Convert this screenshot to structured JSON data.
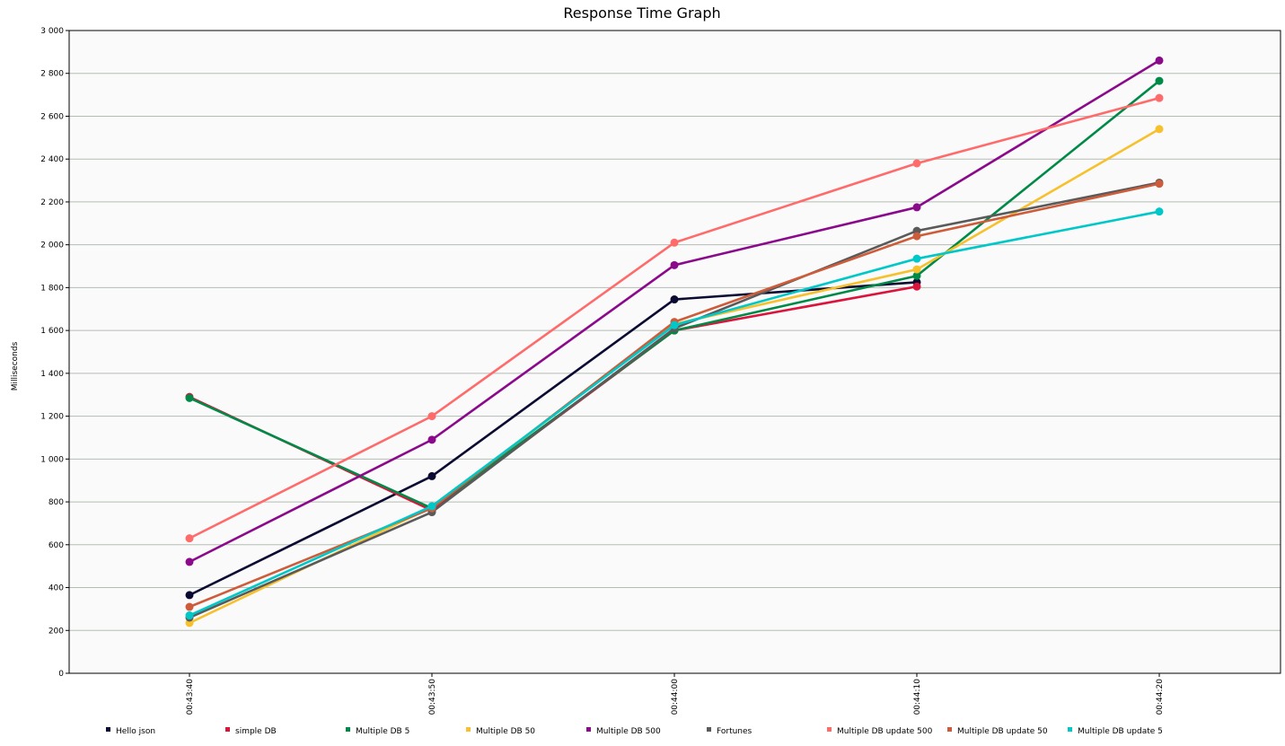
{
  "chart_data": {
    "type": "line",
    "title": "Response Time Graph",
    "xlabel": "",
    "ylabel": "Milliseconds",
    "x": [
      "00:43:40",
      "00:43:50",
      "00:44:00",
      "00:44:10",
      "00:44:20"
    ],
    "ylim": [
      0,
      3000
    ],
    "yticks": [
      0,
      200,
      400,
      600,
      800,
      1000,
      1200,
      1400,
      1600,
      1800,
      2000,
      2200,
      2400,
      2600,
      2800,
      3000
    ],
    "ytick_labels": [
      "0",
      "200",
      "400",
      "600",
      "800",
      "1 000",
      "1 200",
      "1 400",
      "1 600",
      "1 800",
      "2 000",
      "2 200",
      "2 400",
      "2 600",
      "2 800",
      "3 000"
    ],
    "grid": true,
    "legend_position": "bottom",
    "series": [
      {
        "name": "Hello json",
        "color": "#0a0a32",
        "values": [
          365,
          920,
          1745,
          1825,
          null
        ]
      },
      {
        "name": "simple DB",
        "color": "#dc143c",
        "values": [
          1290,
          760,
          1600,
          1805,
          null
        ]
      },
      {
        "name": "Multiple DB 5",
        "color": "#008a47",
        "values": [
          1285,
          770,
          1600,
          1855,
          2765
        ]
      },
      {
        "name": "Multiple DB 50",
        "color": "#f7c12d",
        "values": [
          235,
          775,
          1630,
          1885,
          2540
        ]
      },
      {
        "name": "Multiple DB 500",
        "color": "#8b0a8b",
        "values": [
          520,
          1090,
          1905,
          2175,
          2860
        ]
      },
      {
        "name": "Fortunes",
        "color": "#5a5a5a",
        "values": [
          260,
          752,
          1610,
          2065,
          2290
        ]
      },
      {
        "name": "Multiple DB update 500",
        "color": "#ff6b6b",
        "values": [
          630,
          1200,
          2010,
          2380,
          2685
        ]
      },
      {
        "name": "Multiple DB update 50",
        "color": "#cd5c3a",
        "values": [
          310,
          770,
          1640,
          2040,
          2285
        ]
      },
      {
        "name": "Multiple DB update 5",
        "color": "#00c8c8",
        "values": [
          270,
          780,
          1625,
          1935,
          2155
        ]
      }
    ]
  }
}
